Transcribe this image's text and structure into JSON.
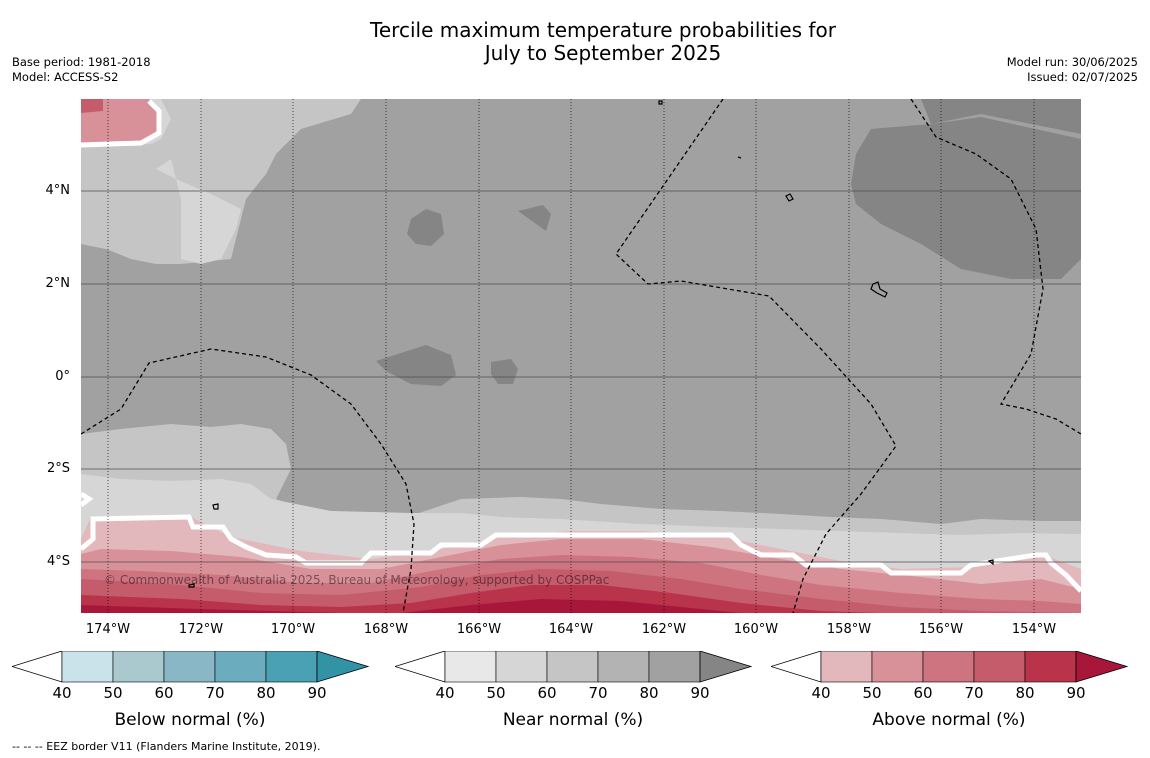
{
  "title_line1": "Tercile maximum temperature probabilities for",
  "title_line2": "July to September 2025",
  "base_period": "Base period: 1981-2018",
  "model": "Model: ACCESS-S2",
  "model_run": "Model run: 30/06/2025",
  "issued": "Issued: 02/07/2025",
  "lat_labels": [
    "4°N",
    "2°N",
    "0°",
    "2°S",
    "4°S"
  ],
  "lon_labels": [
    "174°W",
    "172°W",
    "170°W",
    "168°W",
    "166°W",
    "164°W",
    "162°W",
    "160°W",
    "158°W",
    "156°W",
    "154°W"
  ],
  "copyright": "© Commonwealth of Australia 2025, Bureau of Meteorology, supported by COSPPac",
  "colorbars": [
    {
      "name": "Below normal (%)",
      "ticks": [
        "40",
        "50",
        "60",
        "70",
        "80",
        "90"
      ],
      "colors": [
        "#cae3ea",
        "#a9c9cf",
        "#89b7c5",
        "#6badbe",
        "#4aa1b4",
        "#3393a6"
      ]
    },
    {
      "name": "Near normal (%)",
      "ticks": [
        "40",
        "50",
        "60",
        "70",
        "80",
        "90"
      ],
      "colors": [
        "#e8e8e8",
        "#d6d6d6",
        "#c5c5c5",
        "#b3b3b3",
        "#a1a1a1",
        "#858585"
      ]
    },
    {
      "name": "Above normal (%)",
      "ticks": [
        "40",
        "50",
        "60",
        "70",
        "80",
        "90"
      ],
      "colors": [
        "#e3b8bd",
        "#d99199",
        "#cd7480",
        "#c45c6c",
        "#b9334b",
        "#a8173a"
      ]
    }
  ],
  "footnote": "--  --  -- EEZ border V11 (Flanders Marine Institute, 2019)."
}
